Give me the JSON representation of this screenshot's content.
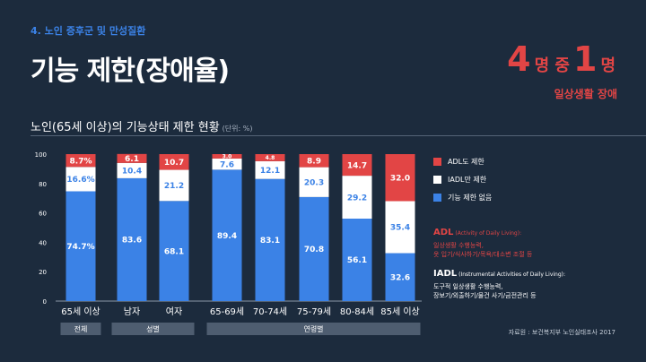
{
  "header": {
    "section": "4. 노인 증후군 및 만성질환",
    "title": "기능 제한(장애율)",
    "stat": {
      "num1": "4",
      "unit1": "명 중",
      "num2": "1",
      "unit2": "명"
    },
    "stat_sub": "일상생활 장애"
  },
  "chart_title": "노인(65세 이상)의 기능상태 제한 현황",
  "chart_unit": "(단위: %)",
  "legend": [
    {
      "label": "ADL도 제한",
      "color": "#e24545"
    },
    {
      "label": "IADL만 제한",
      "color": "#ffffff"
    },
    {
      "label": "기능 제한 없음",
      "color": "#3b82e6"
    }
  ],
  "adl": {
    "head": "ADL",
    "head_sub": "(Activity of Daily Living):",
    "lines": [
      "일상생활 수행능력,",
      "옷 입기/식사하기/목욕/대소변 조절 등"
    ]
  },
  "iadl": {
    "head": "IADL",
    "head_sub": "(Instrumental Activities of Daily Living):",
    "lines": [
      "도구적 일상생활 수행능력,",
      "장보기/외출하기/물건 사기/금전관리 등"
    ]
  },
  "source": "자료원 : 보건복지부 노인실태조사 2017",
  "colors": {
    "adl": "#e24545",
    "iadl": "#ffffff",
    "none": "#3b82e6"
  },
  "chart_data": {
    "type": "bar",
    "stacked": true,
    "categories": [
      "65세 이상",
      "남자",
      "여자",
      "65-69세",
      "70-74세",
      "75-79세",
      "80-84세",
      "85세 이상"
    ],
    "series": [
      {
        "name": "기능 제한 없음",
        "values": [
          74.7,
          83.6,
          68.1,
          89.4,
          83.1,
          70.8,
          56.1,
          32.6
        ]
      },
      {
        "name": "IADL만 제한",
        "values": [
          16.6,
          10.4,
          21.2,
          7.6,
          12.1,
          20.3,
          29.2,
          35.4
        ]
      },
      {
        "name": "ADL도 제한",
        "values": [
          8.7,
          6.1,
          10.7,
          3.0,
          4.8,
          8.9,
          14.7,
          32.0
        ]
      }
    ],
    "value_labels": [
      [
        "74.7%",
        "16.6%",
        "8.7%"
      ],
      [
        "83.6",
        "10.4",
        "6.1"
      ],
      [
        "68.1",
        "21.2",
        "10.7"
      ],
      [
        "89.4",
        "7.6",
        "3.0"
      ],
      [
        "83.1",
        "12.1",
        "4.8"
      ],
      [
        "70.8",
        "20.3",
        "8.9"
      ],
      [
        "56.1",
        "29.2",
        "14.7"
      ],
      [
        "32.6",
        "35.4",
        "32.0"
      ]
    ],
    "yticks": [
      0,
      20,
      40,
      60,
      80,
      100
    ],
    "ylim": [
      0,
      100
    ],
    "groups": [
      {
        "label": "전체",
        "from": 0,
        "to": 0
      },
      {
        "label": "성별",
        "from": 1,
        "to": 2
      },
      {
        "label": "연령별",
        "from": 3,
        "to": 7
      }
    ]
  }
}
